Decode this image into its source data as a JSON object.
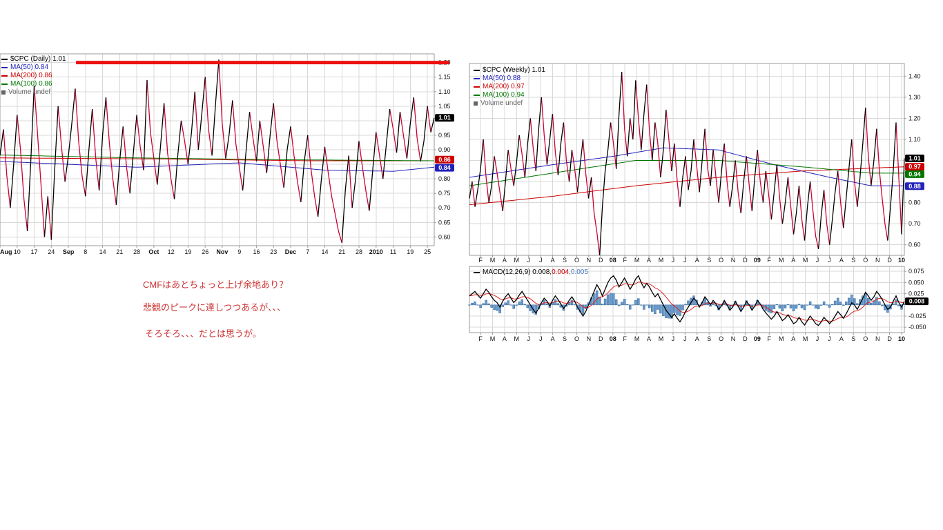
{
  "annotations": {
    "line1": "CMFはあとちょっと上げ余地あり？",
    "line2": "悲観のピークに達しつつあるが、、、",
    "line3": "そろそろ、、、だとは思うが。",
    "text_color": "#cc3333"
  },
  "colors": {
    "grid": "#d8d8d8",
    "border": "#9a9a9a",
    "up": "#000000",
    "down": "#cc0033",
    "hist_fill": "#6699cc",
    "hist_stroke": "#336699",
    "macd_line": "#000000",
    "signal_line": "#dd2222",
    "axis_text": "#111111"
  },
  "chart_data": [
    {
      "id": "cpc_daily",
      "type": "line",
      "title": "$CPC (Daily)",
      "last_value": 1.01,
      "legend": [
        {
          "label": "$CPC (Daily) 1.01",
          "color": "#000000",
          "glyph": "line"
        },
        {
          "label": "MA(50) 0.84",
          "color": "#2222bb",
          "glyph": "line"
        },
        {
          "label": "MA(200) 0.86",
          "color": "#cc0000",
          "glyph": "line"
        },
        {
          "label": "MA(100) 0.86",
          "color": "#007700",
          "glyph": "line"
        },
        {
          "label": "Volume undef",
          "color": "#666666",
          "glyph": "bars"
        }
      ],
      "ylim": [
        0.57,
        1.23
      ],
      "y_grid": [
        0.6,
        0.65,
        0.7,
        0.75,
        0.8,
        0.85,
        0.9,
        0.95,
        1.0,
        1.05,
        1.1,
        1.15,
        1.2
      ],
      "y_labels": [
        {
          "v": 1.2,
          "t": "1.20"
        },
        {
          "v": 1.15,
          "t": "1.15"
        },
        {
          "v": 1.1,
          "t": "1.10"
        },
        {
          "v": 1.05,
          "t": "1.05"
        },
        {
          "v": 0.95,
          "t": "0.95"
        },
        {
          "v": 0.9,
          "t": "0.90"
        },
        {
          "v": 0.8,
          "t": "0.80"
        },
        {
          "v": 0.75,
          "t": "0.75"
        },
        {
          "v": 0.7,
          "t": "0.70"
        },
        {
          "v": 0.65,
          "t": "0.65"
        },
        {
          "v": 0.6,
          "t": "0.60"
        }
      ],
      "xtick_start": 0,
      "xtick_step": 5,
      "x_ticks": [
        {
          "label": "Aug",
          "bold": true
        },
        {
          "label": "10"
        },
        {
          "label": "17"
        },
        {
          "label": "24"
        },
        {
          "label": "Sep",
          "bold": true
        },
        {
          "label": "8"
        },
        {
          "label": "14"
        },
        {
          "label": "21"
        },
        {
          "label": "28"
        },
        {
          "label": "Oct",
          "bold": true
        },
        {
          "label": "12"
        },
        {
          "label": "19"
        },
        {
          "label": "26"
        },
        {
          "label": "Nov",
          "bold": true
        },
        {
          "label": "9"
        },
        {
          "label": "16"
        },
        {
          "label": "23"
        },
        {
          "label": "Dec",
          "bold": true
        },
        {
          "label": "7"
        },
        {
          "label": "14"
        },
        {
          "label": "21"
        },
        {
          "label": "28"
        },
        {
          "label": "2010",
          "bold": true
        },
        {
          "label": "11"
        },
        {
          "label": "19"
        },
        {
          "label": "25"
        }
      ],
      "values": [
        0.88,
        0.97,
        0.81,
        0.7,
        0.85,
        1.02,
        0.9,
        0.73,
        0.62,
        0.86,
        1.12,
        0.95,
        0.78,
        0.6,
        0.74,
        0.59,
        0.83,
        1.05,
        0.91,
        0.79,
        0.88,
        0.99,
        1.11,
        0.93,
        0.81,
        0.74,
        0.9,
        1.04,
        0.87,
        0.76,
        0.95,
        1.08,
        0.92,
        0.8,
        0.71,
        0.86,
        0.98,
        0.84,
        0.75,
        0.89,
        1.02,
        0.91,
        0.83,
        1.14,
        0.96,
        0.87,
        0.78,
        0.92,
        1.06,
        0.89,
        0.8,
        0.73,
        0.88,
        1.0,
        0.93,
        0.85,
        0.96,
        1.1,
        0.9,
        1.02,
        1.15,
        0.97,
        0.88,
        1.05,
        1.21,
        0.99,
        0.87,
        0.95,
        1.07,
        0.92,
        0.84,
        0.76,
        0.9,
        1.03,
        0.94,
        0.86,
        1.0,
        0.91,
        0.82,
        0.95,
        1.06,
        0.93,
        0.85,
        0.77,
        0.9,
        0.98,
        0.88,
        0.79,
        0.72,
        0.86,
        0.95,
        0.83,
        0.74,
        0.67,
        0.8,
        0.91,
        0.82,
        0.74,
        0.68,
        0.62,
        0.58,
        0.76,
        0.88,
        0.7,
        0.8,
        0.93,
        0.84,
        0.76,
        0.69,
        0.83,
        0.96,
        0.88,
        0.8,
        0.92,
        1.04,
        0.97,
        0.89,
        1.03,
        0.95,
        0.87,
        0.99,
        1.08,
        0.94,
        0.86,
        0.93,
        1.05,
        0.96,
        1.01
      ],
      "ma": [
        {
          "name": "MA(50)",
          "color": "#2222bb",
          "points": [
            [
              0,
              0.86
            ],
            [
              40,
              0.84
            ],
            [
              70,
              0.855
            ],
            [
              95,
              0.83
            ],
            [
              115,
              0.826
            ],
            [
              127,
              0.84
            ]
          ]
        },
        {
          "name": "MA(200)",
          "color": "#cc0000",
          "points": [
            [
              0,
              0.872
            ],
            [
              50,
              0.868
            ],
            [
              90,
              0.862
            ],
            [
              127,
              0.862
            ]
          ]
        },
        {
          "name": "MA(100)",
          "color": "#007700",
          "points": [
            [
              0,
              0.882
            ],
            [
              40,
              0.872
            ],
            [
              80,
              0.866
            ],
            [
              127,
              0.862
            ]
          ]
        }
      ],
      "hline": {
        "value": 1.2,
        "color": "#ee1111",
        "thickness": 5,
        "from_frac": 0.175,
        "to_overhang": 22
      },
      "right_labels": [
        {
          "text": "1.01",
          "value": 1.01,
          "bg": "#000000"
        },
        {
          "text": "0.86",
          "value": 0.866,
          "bg": "#cc0000"
        },
        {
          "text": "0.84",
          "value": 0.838,
          "bg": "#2222bb"
        }
      ]
    },
    {
      "id": "cpc_weekly",
      "type": "line",
      "title": "$CPC (Weekly)",
      "last_value": 1.01,
      "legend": [
        {
          "label": "$CPC (Weekly) 1.01",
          "color": "#000000",
          "glyph": "line"
        },
        {
          "label": "MA(50) 0.88",
          "color": "#2222bb",
          "glyph": "line"
        },
        {
          "label": "MA(200) 0.97",
          "color": "#cc0000",
          "glyph": "line"
        },
        {
          "label": "MA(100) 0.94",
          "color": "#007700",
          "glyph": "line"
        },
        {
          "label": "Volume undef",
          "color": "#666666",
          "glyph": "bars"
        }
      ],
      "ylim": [
        0.55,
        1.46
      ],
      "y_grid": [
        0.6,
        0.7,
        0.8,
        0.9,
        1.0,
        1.1,
        1.2,
        1.3,
        1.4
      ],
      "y_labels": [
        {
          "v": 1.4,
          "t": "1.40"
        },
        {
          "v": 1.3,
          "t": "1.30"
        },
        {
          "v": 1.2,
          "t": "1.20"
        },
        {
          "v": 1.1,
          "t": "1.10"
        },
        {
          "v": 0.8,
          "t": "0.80"
        },
        {
          "v": 0.7,
          "t": "0.70"
        },
        {
          "v": 0.6,
          "t": "0.60"
        }
      ],
      "xtick_start": 4,
      "xtick_step": 4.343,
      "x_ticks": [
        {
          "label": "F"
        },
        {
          "label": "M"
        },
        {
          "label": "A"
        },
        {
          "label": "M"
        },
        {
          "label": "J"
        },
        {
          "label": "J"
        },
        {
          "label": "A"
        },
        {
          "label": "S"
        },
        {
          "label": "O"
        },
        {
          "label": "N"
        },
        {
          "label": "D"
        },
        {
          "label": "08",
          "bold": true
        },
        {
          "label": "F"
        },
        {
          "label": "M"
        },
        {
          "label": "A"
        },
        {
          "label": "M"
        },
        {
          "label": "J"
        },
        {
          "label": "J"
        },
        {
          "label": "A"
        },
        {
          "label": "S"
        },
        {
          "label": "O"
        },
        {
          "label": "N"
        },
        {
          "label": "D"
        },
        {
          "label": "09",
          "bold": true
        },
        {
          "label": "F"
        },
        {
          "label": "M"
        },
        {
          "label": "A"
        },
        {
          "label": "M"
        },
        {
          "label": "J"
        },
        {
          "label": "J"
        },
        {
          "label": "A"
        },
        {
          "label": "S"
        },
        {
          "label": "O"
        },
        {
          "label": "N"
        },
        {
          "label": "D"
        },
        {
          "label": "10",
          "bold": true
        }
      ],
      "values": [
        0.82,
        0.9,
        0.78,
        0.86,
        0.96,
        1.1,
        0.92,
        0.8,
        0.88,
        1.02,
        0.94,
        0.85,
        0.76,
        0.9,
        1.05,
        0.96,
        0.88,
        0.99,
        1.12,
        1.03,
        0.92,
        1.08,
        1.2,
        1.06,
        0.95,
        1.15,
        1.3,
        1.12,
        0.98,
        1.1,
        1.22,
        1.04,
        0.93,
        1.08,
        1.18,
        1.0,
        0.9,
        1.05,
        0.96,
        0.85,
        0.98,
        1.1,
        0.94,
        0.82,
        0.92,
        0.75,
        0.66,
        0.55,
        0.78,
        0.95,
        1.05,
        1.18,
        1.08,
        0.96,
        1.22,
        1.42,
        1.15,
        1.02,
        1.2,
        1.1,
        1.38,
        1.2,
        1.05,
        1.22,
        1.36,
        1.14,
        1.0,
        1.18,
        1.08,
        0.92,
        1.05,
        1.24,
        1.1,
        0.95,
        1.08,
        0.9,
        0.78,
        0.92,
        1.02,
        0.86,
        0.95,
        1.1,
        0.98,
        0.85,
        1.0,
        1.15,
        0.96,
        0.88,
        1.05,
        0.92,
        0.8,
        0.95,
        1.08,
        0.9,
        0.78,
        0.88,
        1.0,
        0.85,
        0.75,
        0.9,
        1.02,
        0.88,
        0.76,
        0.92,
        1.05,
        0.9,
        0.8,
        0.95,
        0.84,
        0.72,
        0.85,
        0.98,
        0.82,
        0.7,
        0.8,
        0.92,
        0.78,
        0.65,
        0.75,
        0.88,
        0.72,
        0.62,
        0.78,
        0.9,
        0.76,
        0.64,
        0.58,
        0.74,
        0.86,
        0.7,
        0.6,
        0.72,
        0.85,
        0.95,
        0.8,
        0.68,
        0.82,
        0.96,
        1.1,
        0.9,
        0.78,
        0.92,
        1.08,
        1.25,
        1.02,
        0.88,
        1.0,
        1.15,
        0.95,
        0.82,
        0.7,
        0.62,
        0.78,
        0.95,
        1.18,
        0.92,
        0.65,
        1.01
      ],
      "ma": [
        {
          "name": "MA(50)",
          "color": "#2222bb",
          "points": [
            [
              0,
              0.92
            ],
            [
              30,
              0.98
            ],
            [
              52,
              1.02
            ],
            [
              70,
              1.06
            ],
            [
              90,
              1.05
            ],
            [
              110,
              0.98
            ],
            [
              130,
              0.92
            ],
            [
              145,
              0.88
            ],
            [
              157,
              0.88
            ]
          ]
        },
        {
          "name": "MA(200)",
          "color": "#cc0000",
          "points": [
            [
              0,
              0.79
            ],
            [
              30,
              0.83
            ],
            [
              60,
              0.88
            ],
            [
              90,
              0.92
            ],
            [
              120,
              0.95
            ],
            [
              157,
              0.97
            ]
          ]
        },
        {
          "name": "MA(100)",
          "color": "#007700",
          "points": [
            [
              0,
              0.88
            ],
            [
              30,
              0.94
            ],
            [
              60,
              1.0
            ],
            [
              90,
              1.0
            ],
            [
              120,
              0.97
            ],
            [
              145,
              0.94
            ],
            [
              157,
              0.94
            ]
          ]
        }
      ],
      "right_labels": [
        {
          "text": "1.01",
          "value": 1.01,
          "bg": "#000000"
        },
        {
          "text": "0.97",
          "value": 0.97,
          "bg": "#cc0000"
        },
        {
          "text": "0.94",
          "value": 0.935,
          "bg": "#007700"
        },
        {
          "text": "0.88",
          "value": 0.878,
          "bg": "#2222bb"
        }
      ]
    },
    {
      "id": "cpc_weekly_macd",
      "type": "macd",
      "title": "MACD(12,26,9)",
      "label_parts": [
        {
          "text": "MACD(12,26,9) 0.008,",
          "color": "#000000"
        },
        {
          "text": " 0.004,",
          "color": "#cc0000"
        },
        {
          "text": " 0.005",
          "color": "#4477bb"
        }
      ],
      "signal_period": 9,
      "ylim": [
        -0.062,
        0.086
      ],
      "y_grid": [
        -0.05,
        -0.025,
        0.0,
        0.025,
        0.05,
        0.075
      ],
      "y_labels": [
        {
          "v": 0.075,
          "t": "0.075"
        },
        {
          "v": 0.05,
          "t": "0.050"
        },
        {
          "v": 0.025,
          "t": "0.025"
        },
        {
          "v": -0.025,
          "t": "-0.025"
        },
        {
          "v": -0.05,
          "t": "-0.050"
        }
      ],
      "xtick_start": 4,
      "xtick_step": 4.343,
      "x_ticks": [
        {
          "label": "F"
        },
        {
          "label": "M"
        },
        {
          "label": "A"
        },
        {
          "label": "M"
        },
        {
          "label": "J"
        },
        {
          "label": "J"
        },
        {
          "label": "A"
        },
        {
          "label": "S"
        },
        {
          "label": "O"
        },
        {
          "label": "N"
        },
        {
          "label": "D"
        },
        {
          "label": "08",
          "bold": true
        },
        {
          "label": "F"
        },
        {
          "label": "M"
        },
        {
          "label": "A"
        },
        {
          "label": "M"
        },
        {
          "label": "J"
        },
        {
          "label": "J"
        },
        {
          "label": "A"
        },
        {
          "label": "S"
        },
        {
          "label": "O"
        },
        {
          "label": "N"
        },
        {
          "label": "D"
        },
        {
          "label": "09",
          "bold": true
        },
        {
          "label": "F"
        },
        {
          "label": "M"
        },
        {
          "label": "A"
        },
        {
          "label": "M"
        },
        {
          "label": "J"
        },
        {
          "label": "J"
        },
        {
          "label": "A"
        },
        {
          "label": "S"
        },
        {
          "label": "O"
        },
        {
          "label": "N"
        },
        {
          "label": "D"
        },
        {
          "label": "10",
          "bold": true
        }
      ],
      "macd_values": [
        0.02,
        0.025,
        0.03,
        0.022,
        0.015,
        0.025,
        0.035,
        0.028,
        0.018,
        0.01,
        0.005,
        -0.005,
        0.008,
        0.018,
        0.025,
        0.015,
        0.005,
        0.012,
        0.022,
        0.03,
        0.02,
        0.01,
        0.0,
        -0.01,
        -0.018,
        -0.008,
        0.005,
        0.015,
        0.008,
        -0.002,
        0.01,
        0.02,
        0.012,
        0.002,
        -0.008,
        0.0,
        0.01,
        0.018,
        0.008,
        -0.005,
        -0.015,
        -0.025,
        -0.015,
        0.0,
        0.015,
        0.03,
        0.045,
        0.035,
        0.02,
        0.035,
        0.05,
        0.06,
        0.065,
        0.055,
        0.04,
        0.05,
        0.06,
        0.048,
        0.035,
        0.045,
        0.058,
        0.065,
        0.05,
        0.038,
        0.048,
        0.04,
        0.028,
        0.018,
        0.025,
        0.012,
        0.0,
        -0.012,
        -0.02,
        -0.028,
        -0.02,
        -0.03,
        -0.038,
        -0.028,
        -0.015,
        -0.005,
        0.005,
        0.015,
        0.008,
        -0.005,
        0.005,
        0.018,
        0.01,
        0.0,
        0.01,
        0.002,
        -0.01,
        -0.002,
        0.01,
        0.0,
        -0.012,
        -0.005,
        0.008,
        -0.003,
        -0.015,
        -0.005,
        0.008,
        0.0,
        -0.012,
        -0.003,
        0.01,
        0.002,
        -0.01,
        -0.018,
        -0.025,
        -0.032,
        -0.025,
        -0.015,
        -0.025,
        -0.035,
        -0.03,
        -0.022,
        -0.032,
        -0.042,
        -0.038,
        -0.028,
        -0.038,
        -0.045,
        -0.035,
        -0.025,
        -0.033,
        -0.042,
        -0.046,
        -0.038,
        -0.028,
        -0.035,
        -0.042,
        -0.035,
        -0.025,
        -0.015,
        -0.022,
        -0.03,
        -0.02,
        -0.008,
        0.005,
        0.0,
        -0.01,
        0.002,
        0.015,
        0.028,
        0.02,
        0.01,
        0.018,
        0.03,
        0.022,
        0.012,
        0.0,
        -0.01,
        -0.005,
        0.008,
        0.02,
        0.005,
        -0.005,
        0.008
      ],
      "right_labels": [
        {
          "text": "0.008",
          "value": 0.008,
          "bg": "#000000"
        }
      ]
    }
  ]
}
